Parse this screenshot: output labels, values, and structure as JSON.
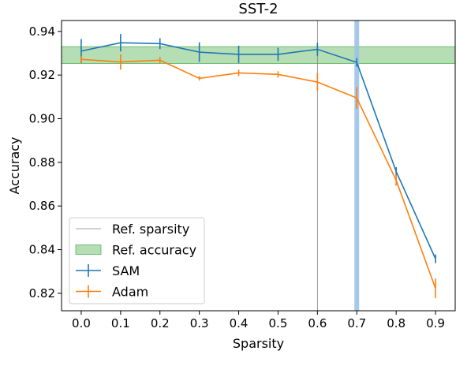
{
  "chart_data": {
    "type": "line",
    "title": "SST-2",
    "xlabel": "Sparsity",
    "ylabel": "Accuracy",
    "xlim": [
      -0.05,
      0.95
    ],
    "ylim": [
      0.812,
      0.945
    ],
    "xticks": [
      0.0,
      0.1,
      0.2,
      0.3,
      0.4,
      0.5,
      0.6,
      0.7,
      0.8,
      0.9
    ],
    "xtick_labels": [
      "0.0",
      "0.1",
      "0.2",
      "0.3",
      "0.4",
      "0.5",
      "0.6",
      "0.7",
      "0.8",
      "0.9"
    ],
    "yticks": [
      0.82,
      0.84,
      0.86,
      0.88,
      0.9,
      0.92,
      0.94
    ],
    "ytick_labels": [
      "0.82",
      "0.84",
      "0.86",
      "0.88",
      "0.90",
      "0.92",
      "0.94"
    ],
    "grid": false,
    "legend_placement": "lower-left",
    "ref_sparsity": {
      "name": "Ref. sparsity",
      "x": 0.6,
      "color": "#808080"
    },
    "ref_accuracy": {
      "name": "Ref. accuracy",
      "y_low": 0.9253,
      "y_high": 0.933,
      "color": "#2ca02c"
    },
    "highlight_line": {
      "x": 0.7,
      "color": "#9cc3e6"
    },
    "series": [
      {
        "name": "SAM",
        "color": "#1f77b4",
        "x": [
          0.0,
          0.1,
          0.2,
          0.3,
          0.4,
          0.5,
          0.6,
          0.7,
          0.8,
          0.9
        ],
        "y": [
          0.931,
          0.9348,
          0.9344,
          0.9305,
          0.9295,
          0.9295,
          0.9318,
          0.9258,
          0.8758,
          0.8358
        ],
        "err": [
          0.0055,
          0.004,
          0.0025,
          0.0045,
          0.004,
          0.003,
          0.003,
          0.002,
          0.002,
          0.002
        ]
      },
      {
        "name": "Adam",
        "color": "#ff7f0e",
        "x": [
          0.0,
          0.1,
          0.2,
          0.3,
          0.4,
          0.5,
          0.6,
          0.7,
          0.8,
          0.9
        ],
        "y": [
          0.9272,
          0.926,
          0.9268,
          0.9185,
          0.921,
          0.9203,
          0.9168,
          0.9095,
          0.8718,
          0.8222
        ],
        "err": [
          0.0015,
          0.0035,
          0.0015,
          0.001,
          0.0015,
          0.0015,
          0.004,
          0.005,
          0.0025,
          0.0045
        ]
      }
    ]
  }
}
